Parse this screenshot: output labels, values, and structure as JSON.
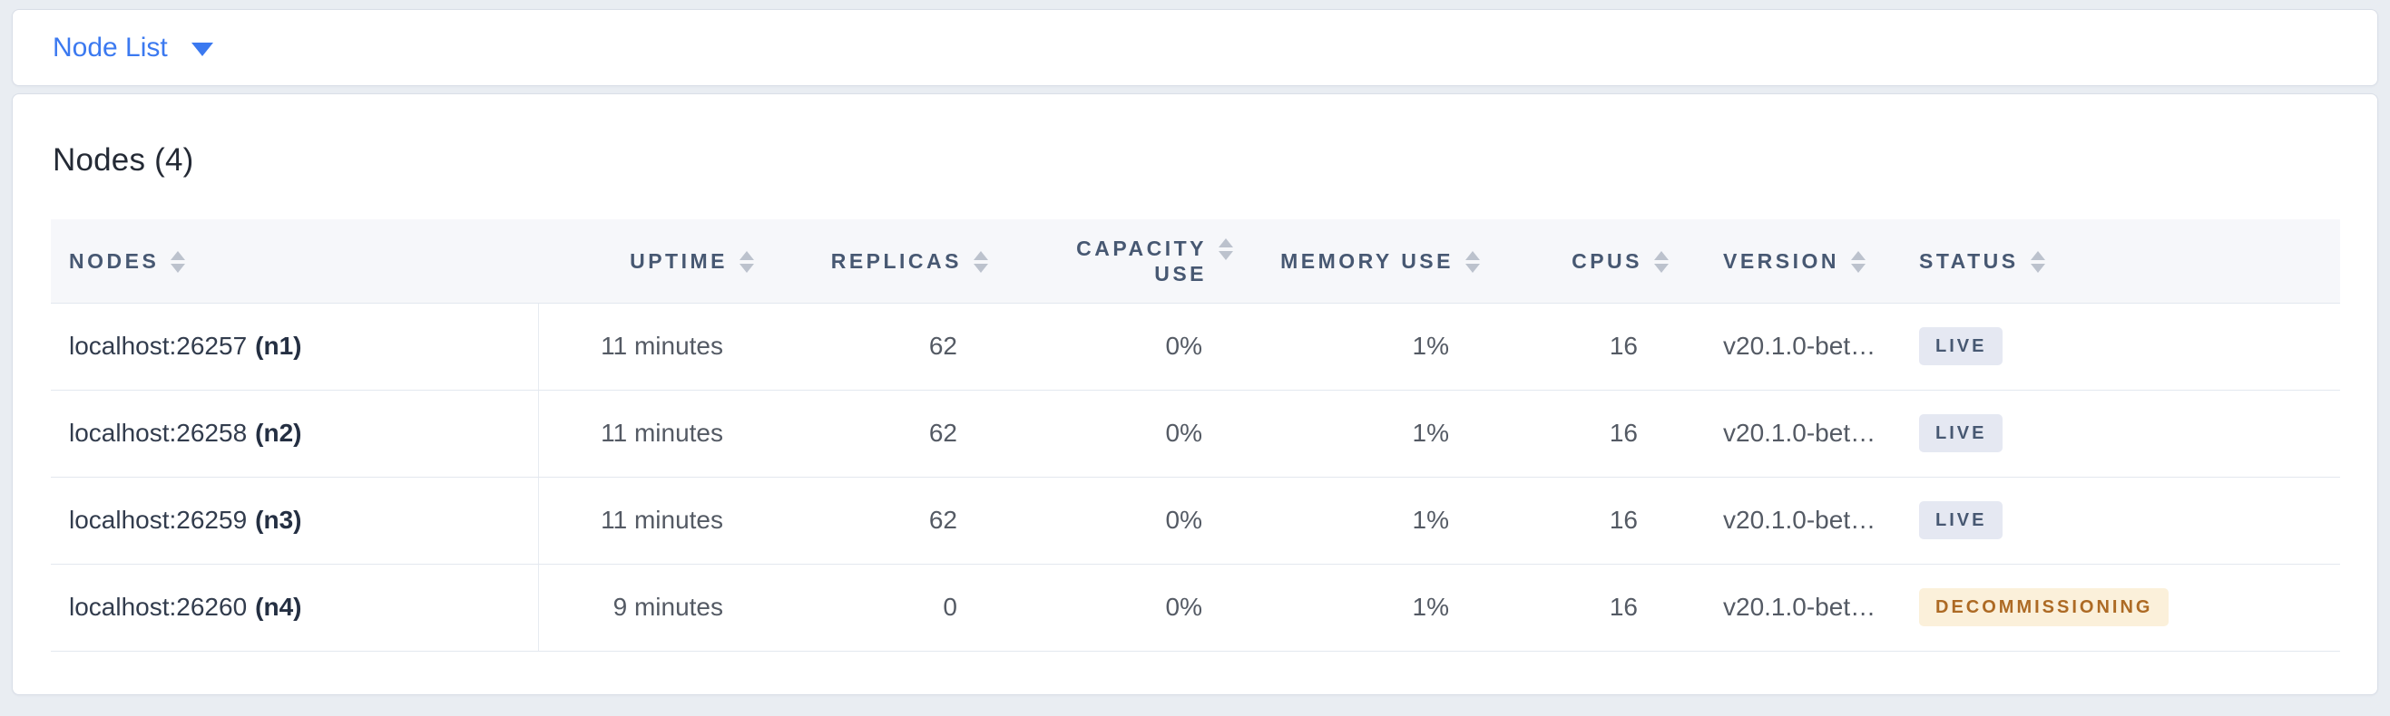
{
  "view_selector": {
    "label": "Node List"
  },
  "overview": {
    "title": "Nodes (4)",
    "table": {
      "columns": [
        {
          "key": "nodes",
          "label": "NODES",
          "align": "left",
          "sortable": true
        },
        {
          "key": "uptime",
          "label": "UPTIME",
          "align": "right",
          "sortable": true
        },
        {
          "key": "replicas",
          "label": "REPLICAS",
          "align": "right",
          "sortable": true
        },
        {
          "key": "capacity",
          "label": "CAPACITY USE",
          "align": "right",
          "sortable": true
        },
        {
          "key": "memory",
          "label": "MEMORY USE",
          "align": "right",
          "sortable": true
        },
        {
          "key": "cpus",
          "label": "CPUS",
          "align": "right",
          "sortable": true
        },
        {
          "key": "version",
          "label": "VERSION",
          "align": "left",
          "sortable": true
        },
        {
          "key": "status",
          "label": "STATUS",
          "align": "left",
          "sortable": true
        }
      ],
      "rows": [
        {
          "address": "localhost:26257",
          "id": "(n1)",
          "uptime": "11 minutes",
          "replicas": "62",
          "capacity": "0%",
          "memory": "1%",
          "cpus": "16",
          "version": "v20.1.0-bet…",
          "status": "LIVE",
          "status_variant": "live"
        },
        {
          "address": "localhost:26258",
          "id": "(n2)",
          "uptime": "11 minutes",
          "replicas": "62",
          "capacity": "0%",
          "memory": "1%",
          "cpus": "16",
          "version": "v20.1.0-bet…",
          "status": "LIVE",
          "status_variant": "live"
        },
        {
          "address": "localhost:26259",
          "id": "(n3)",
          "uptime": "11 minutes",
          "replicas": "62",
          "capacity": "0%",
          "memory": "1%",
          "cpus": "16",
          "version": "v20.1.0-bet…",
          "status": "LIVE",
          "status_variant": "live"
        },
        {
          "address": "localhost:26260",
          "id": "(n4)",
          "uptime": "9 minutes",
          "replicas": "0",
          "capacity": "0%",
          "memory": "1%",
          "cpus": "16",
          "version": "v20.1.0-bet…",
          "status": "DECOMMISSIONING",
          "status_variant": "decommissioning"
        }
      ]
    }
  },
  "colors": {
    "accent_blue": "#3b79f0",
    "live_badge_bg": "#e5e8f2",
    "live_badge_text": "#475872",
    "decommissioning_badge_bg": "#fbf0da",
    "decommissioning_badge_text": "#ad6a24",
    "header_text": "#475872",
    "page_bg": "#e9edf2"
  }
}
